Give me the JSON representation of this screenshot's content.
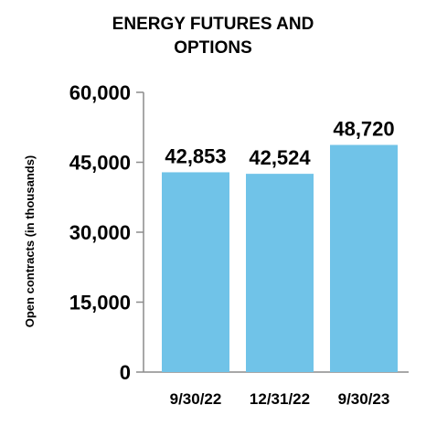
{
  "chart_data": {
    "type": "bar",
    "title_lines": [
      "ENERGY FUTURES AND",
      "OPTIONS"
    ],
    "ylabel": "Open contracts (in thousands)",
    "xlabel": "",
    "categories": [
      "9/30/22",
      "12/31/22",
      "9/30/23"
    ],
    "values": [
      42853,
      42524,
      48720
    ],
    "data_labels": [
      "42,853",
      "42,524",
      "48,720"
    ],
    "ylim": [
      0,
      60000
    ],
    "yticks": [
      0,
      15000,
      30000,
      45000,
      60000
    ],
    "ytick_labels": [
      "0",
      "15,000",
      "30,000",
      "45,000",
      "60,000"
    ],
    "bar_color": "#70C3E8",
    "grid": false,
    "legend": "none"
  }
}
